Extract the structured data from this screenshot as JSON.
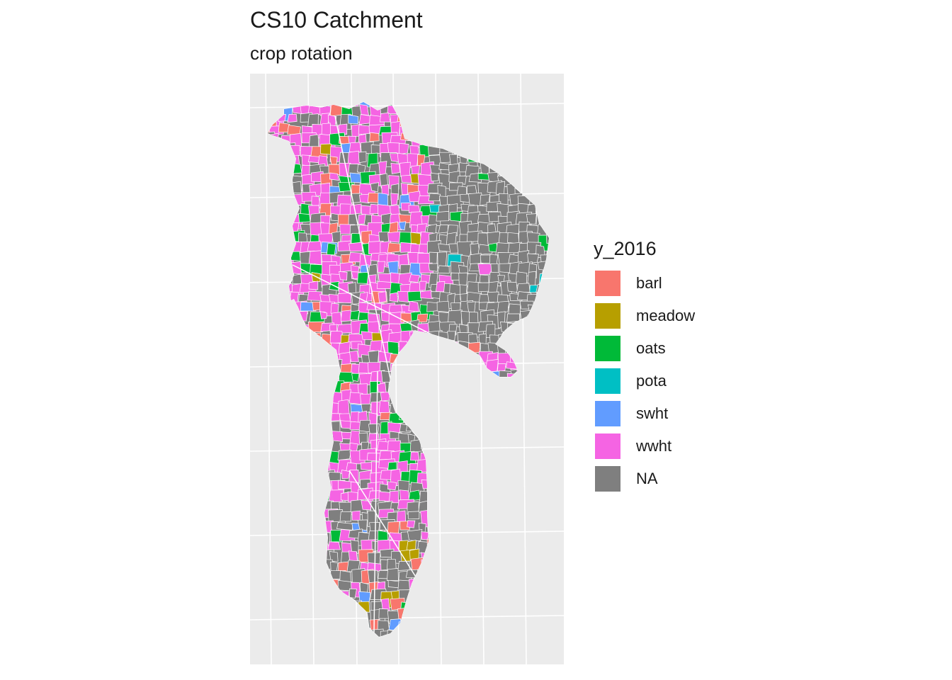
{
  "title": "CS10 Catchment",
  "subtitle": "crop rotation",
  "legend": {
    "title": "y_2016",
    "items": [
      {
        "label": "barl",
        "color": "#F8766D"
      },
      {
        "label": "meadow",
        "color": "#B79F00"
      },
      {
        "label": "oats",
        "color": "#00BA38"
      },
      {
        "label": "pota",
        "color": "#00BFC4"
      },
      {
        "label": "swht",
        "color": "#619CFF"
      },
      {
        "label": "wwht",
        "color": "#F564E3"
      },
      {
        "label": "NA",
        "color": "#7F7F7F"
      }
    ]
  },
  "colors": {
    "panel_background": "#EBEBEB",
    "graticule": "#FFFFFF",
    "field_border": "#FFFFFF"
  }
}
